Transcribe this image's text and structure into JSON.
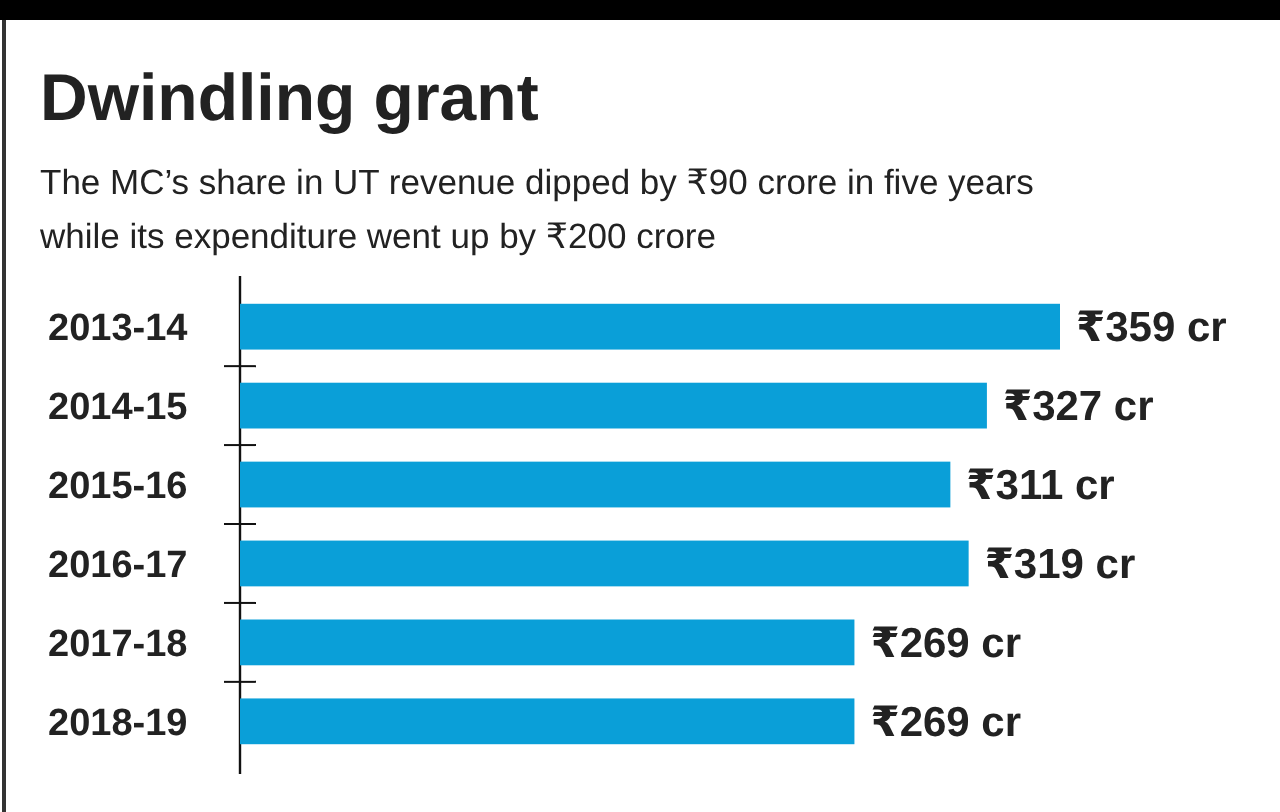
{
  "chart_data": {
    "type": "bar",
    "orientation": "horizontal",
    "title": "Dwindling grant",
    "subtitle": "The MC’s share in UT revenue dipped by ₹90 crore in five years while its expenditure went up by ₹200 crore",
    "categories": [
      "2013-14",
      "2014-15",
      "2015-16",
      "2016-17",
      "2017-18",
      "2018-19"
    ],
    "values": [
      359,
      327,
      311,
      319,
      269,
      269
    ],
    "value_labels": [
      "₹359 cr",
      "₹327 cr",
      "₹311 cr",
      "₹319 cr",
      "₹269 cr",
      "₹269 cr"
    ],
    "color": "#0a9fd8"
  }
}
